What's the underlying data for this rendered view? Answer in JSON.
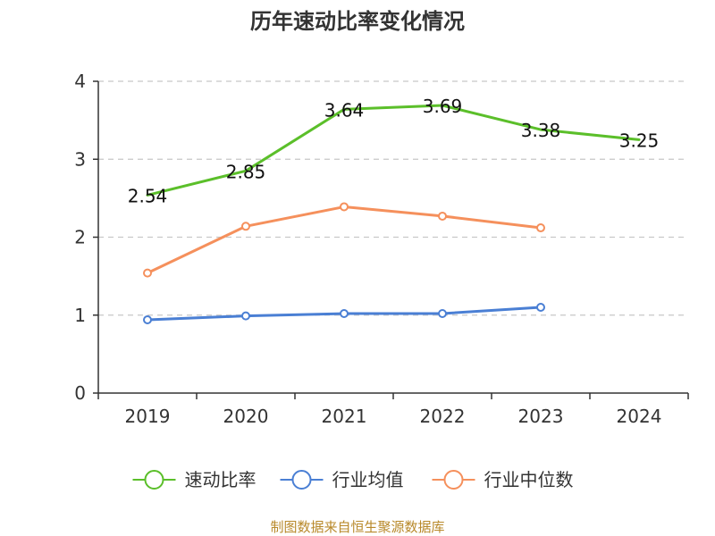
{
  "chart_data": {
    "type": "line",
    "title": "历年速动比率变化情况",
    "categories": [
      "2019",
      "2020",
      "2021",
      "2022",
      "2023",
      "2024"
    ],
    "ylim": [
      0,
      4
    ],
    "yticks": [
      0,
      1,
      2,
      3,
      4
    ],
    "grid": true,
    "legend_position": "bottom",
    "series": [
      {
        "name": "速动比率",
        "color": "#5bbf2a",
        "values": [
          2.54,
          2.85,
          3.64,
          3.69,
          3.38,
          3.25
        ],
        "show_labels": true,
        "show_markers": false
      },
      {
        "name": "行业均值",
        "color": "#4a7fd4",
        "values": [
          0.94,
          0.99,
          1.02,
          1.02,
          1.1,
          null
        ],
        "show_labels": false,
        "show_markers": true
      },
      {
        "name": "行业中位数",
        "color": "#f5905c",
        "values": [
          1.54,
          2.14,
          2.39,
          2.27,
          2.12,
          null
        ],
        "show_labels": false,
        "show_markers": true
      }
    ],
    "source": "制图数据来自恒生聚源数据库"
  }
}
